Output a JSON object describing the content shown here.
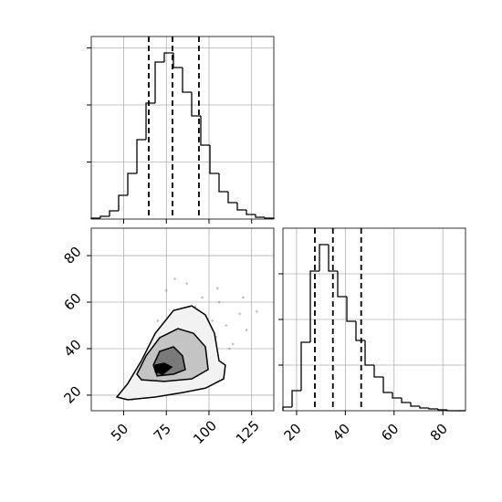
{
  "chart_data": [
    {
      "type": "histogram",
      "color": "#000000",
      "grid": true,
      "bins": [
        31,
        36.35,
        41.7,
        47.05,
        52.4,
        57.75,
        63.1,
        68.45,
        73.8,
        79.15,
        84.5,
        89.85,
        95.2,
        100.55,
        105.9,
        111.25,
        116.6,
        121.95,
        127.3,
        132.65,
        138
      ],
      "values": [
        8,
        24,
        72,
        208,
        400,
        696,
        1016,
        1376,
        1456,
        1328,
        1112,
        904,
        648,
        400,
        240,
        144,
        80,
        40,
        16,
        8
      ],
      "quantiles": [
        64.7,
        78.6,
        94.1
      ],
      "xlim": [
        31,
        138
      ],
      "ylim": [
        0,
        1600
      ],
      "xticks": [
        50,
        75,
        100,
        125
      ],
      "yticks": [
        500,
        1000,
        1500
      ]
    },
    {
      "type": "scatter",
      "color": "#808080",
      "grid": true,
      "x": [
        55,
        60,
        62,
        65,
        66,
        68,
        70,
        71,
        72,
        73,
        74,
        75,
        76,
        77,
        78,
        79,
        80,
        81,
        82,
        83,
        84,
        85,
        86,
        88,
        90,
        92,
        94,
        96,
        98,
        100,
        102,
        104,
        106,
        110,
        114,
        118,
        122,
        58,
        64,
        69,
        75,
        80,
        87,
        93,
        99,
        105,
        112,
        120,
        128,
        70
      ],
      "y": [
        18,
        22,
        26,
        20,
        30,
        24,
        28,
        35,
        22,
        40,
        31,
        26,
        45,
        29,
        34,
        38,
        50,
        27,
        42,
        33,
        55,
        30,
        47,
        36,
        44,
        58,
        40,
        62,
        48,
        38,
        52,
        45,
        60,
        50,
        42,
        55,
        48,
        30,
        38,
        44,
        65,
        70,
        68,
        28,
        32,
        66,
        40,
        62,
        56,
        52
      ],
      "contours": [
        {
          "fill": "#f2f2f2",
          "x": [
            46,
            52.4,
            60.4,
            68.5,
            79.2,
            89.9,
            97.9,
            103.2,
            105.9,
            109.6,
            108.6,
            97.9,
            84.5,
            68.5,
            52.4
          ],
          "y": [
            19.2,
            25,
            34.8,
            46.6,
            56.4,
            58.4,
            54.5,
            46.6,
            34.8,
            32.9,
            27,
            23,
            21.1,
            19.2,
            18
          ]
        },
        {
          "fill": "#c4c4c4",
          "x": [
            57.75,
            63.1,
            71.1,
            81.8,
            90.9,
            97.9,
            99.5,
            89.9,
            73.8,
            60.4
          ],
          "y": [
            29,
            36.9,
            44.7,
            48.6,
            46.6,
            40.8,
            31,
            27,
            25.9,
            26.6
          ]
        },
        {
          "fill": "#7a7a7a",
          "x": [
            67.4,
            71.1,
            79.2,
            84.5,
            86.1,
            79.2,
            69.6
          ],
          "y": [
            32.9,
            38.8,
            40.8,
            36.9,
            31,
            29,
            28.3
          ]
        },
        {
          "fill": "#000000",
          "x": [
            68.5,
            73.8,
            78.1,
            72.8,
            68.5
          ],
          "y": [
            32.9,
            33.7,
            32.1,
            29,
            30.2
          ]
        }
      ],
      "xlim": [
        31,
        138
      ],
      "ylim": [
        13.3,
        91.8
      ],
      "xticks": [
        50,
        75,
        100,
        125
      ],
      "yticks": [
        20,
        40,
        60,
        80
      ]
    },
    {
      "type": "histogram",
      "color": "#000000",
      "grid": true,
      "bins": [
        14.4,
        18.15,
        21.89,
        25.64,
        29.38,
        33.13,
        36.87,
        40.62,
        44.36,
        48.11,
        51.85,
        55.6,
        59.34,
        63.09,
        66.83,
        70.58,
        74.32,
        78.07,
        81.81,
        85.56,
        89.3
      ],
      "values": [
        32,
        176,
        600,
        1224,
        1456,
        1224,
        1000,
        784,
        616,
        400,
        296,
        160,
        112,
        72,
        40,
        24,
        16,
        8,
        0,
        0
      ],
      "quantiles": [
        27.5,
        34.9,
        46.5
      ],
      "xlim": [
        14.4,
        89.3
      ],
      "ylim": [
        0,
        1600
      ],
      "xticks": [
        20,
        40,
        60,
        80
      ],
      "yticks": [
        400,
        800,
        1200
      ]
    }
  ]
}
